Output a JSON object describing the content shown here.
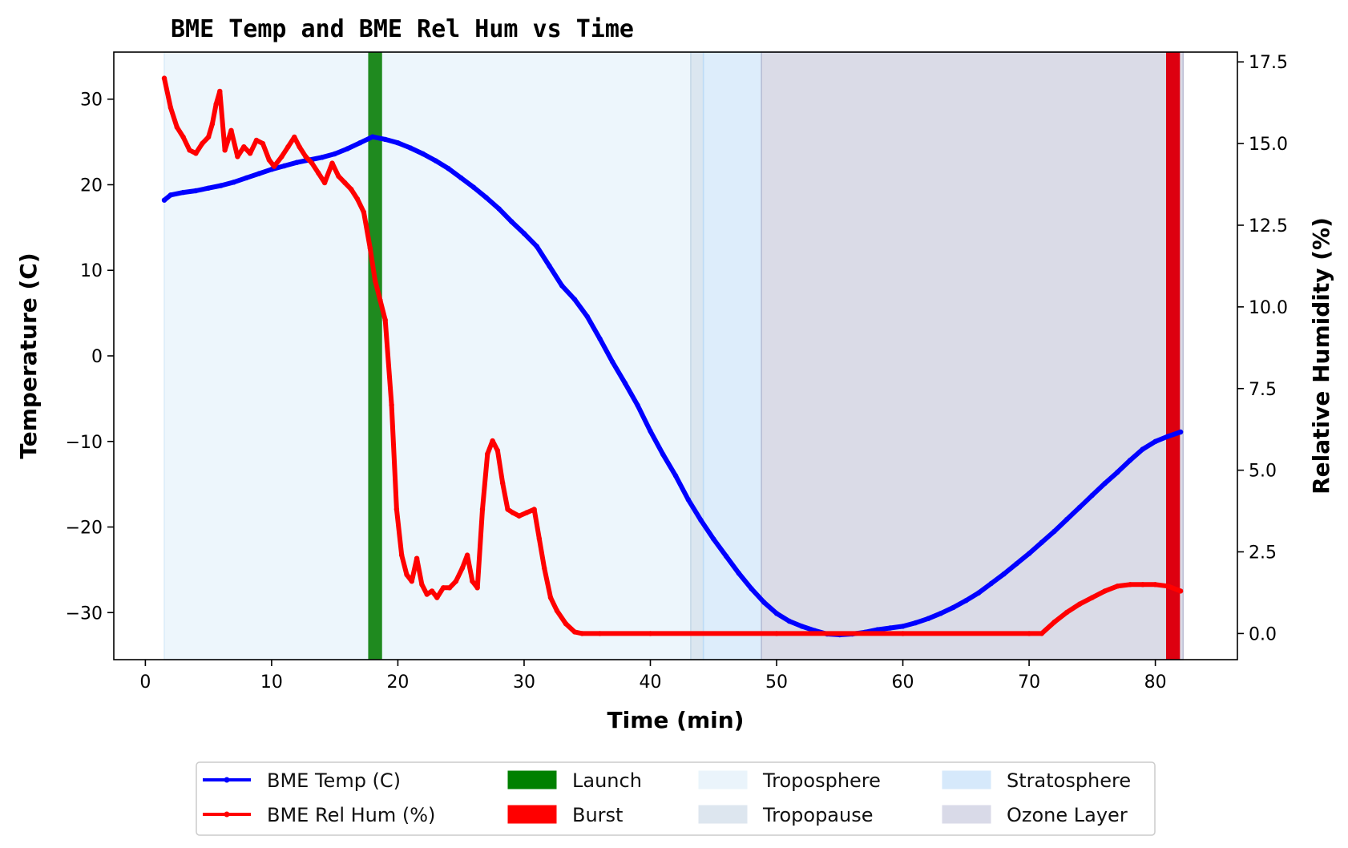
{
  "chart_data": {
    "type": "line",
    "title": "BME Temp and BME Rel Hum vs Time",
    "xlabel": "Time (min)",
    "ylabel_left": "Temperature (C)",
    "ylabel_right": "Relative Humidity (%)",
    "xlim": [
      -2.5,
      86.5
    ],
    "ylim_left": [
      -35.5,
      35.5
    ],
    "ylim_right": [
      -0.8,
      17.8
    ],
    "x_ticks": [
      0,
      10,
      20,
      30,
      40,
      50,
      60,
      70,
      80
    ],
    "x_tick_labels": [
      "0",
      "10",
      "20",
      "30",
      "40",
      "50",
      "60",
      "70",
      "80"
    ],
    "y_left_ticks": [
      30,
      20,
      10,
      0,
      -10,
      -20,
      -30
    ],
    "y_left_tick_labels": [
      "30",
      "20",
      "10",
      "0",
      "−10",
      "−20",
      "−30"
    ],
    "y_right_ticks": [
      0,
      2.5,
      5,
      7.5,
      10,
      12.5,
      15,
      17.5
    ],
    "y_right_tick_labels": [
      "0.0",
      "2.5",
      "5.0",
      "7.5",
      "10.0",
      "12.5",
      "15.0",
      "17.5"
    ],
    "grid": false,
    "legend_position": "below",
    "regions": [
      {
        "name": "Troposphere",
        "x0": 1.5,
        "x1": 43.2,
        "color": "#d6eaf8",
        "opacity": 0.45
      },
      {
        "name": "Tropopause",
        "x0": 43.2,
        "x1": 44.2,
        "color": "#c3d6e6",
        "opacity": 0.6
      },
      {
        "name": "Stratosphere",
        "x0": 44.2,
        "x1": 48.8,
        "color": "#bcdcf7",
        "opacity": 0.5
      },
      {
        "name": "Ozone Layer",
        "x0": 48.8,
        "x1": 82.2,
        "color": "#b6b8d0",
        "opacity": 0.5
      }
    ],
    "events": [
      {
        "name": "Launch",
        "x": 18.2,
        "width": 1.1,
        "color": "#1f8a1f"
      },
      {
        "name": "Burst",
        "x": 81.4,
        "width": 1.1,
        "color": "#dd0010"
      }
    ],
    "series": [
      {
        "name": "BME Temp (C)",
        "axis": "left",
        "color": "#0000ff",
        "x": [
          1.5,
          2,
          3,
          4,
          5,
          6,
          7,
          8,
          9,
          10,
          11,
          12,
          13,
          14,
          15,
          16,
          17,
          18,
          19,
          20,
          21,
          22,
          23,
          24,
          25,
          26,
          27,
          28,
          29,
          30,
          31,
          32,
          33,
          34,
          35,
          36,
          37,
          38,
          39,
          40,
          41,
          42,
          43,
          44,
          45,
          46,
          47,
          48,
          49,
          50,
          51,
          52,
          53,
          54,
          55,
          56,
          57,
          58,
          59,
          60,
          61,
          62,
          63,
          64,
          65,
          66,
          67,
          68,
          69,
          70,
          71,
          72,
          73,
          74,
          75,
          76,
          77,
          78,
          79,
          80,
          81,
          82
        ],
        "y": [
          18.2,
          18.8,
          19.1,
          19.3,
          19.6,
          19.9,
          20.3,
          20.8,
          21.3,
          21.8,
          22.2,
          22.6,
          22.9,
          23.2,
          23.6,
          24.2,
          24.9,
          25.6,
          25.3,
          24.9,
          24.3,
          23.6,
          22.8,
          21.9,
          20.8,
          19.7,
          18.5,
          17.2,
          15.7,
          14.3,
          12.8,
          10.5,
          8.2,
          6.6,
          4.6,
          2.0,
          -0.7,
          -3.2,
          -5.8,
          -8.8,
          -11.5,
          -14.0,
          -16.8,
          -19.2,
          -21.4,
          -23.4,
          -25.4,
          -27.2,
          -28.8,
          -30.1,
          -31.0,
          -31.6,
          -32.1,
          -32.5,
          -32.6,
          -32.5,
          -32.3,
          -32.0,
          -31.8,
          -31.6,
          -31.2,
          -30.7,
          -30.1,
          -29.4,
          -28.6,
          -27.7,
          -26.6,
          -25.5,
          -24.3,
          -23.1,
          -21.8,
          -20.5,
          -19.1,
          -17.7,
          -16.3,
          -14.9,
          -13.6,
          -12.2,
          -10.9,
          -10.0,
          -9.4,
          -8.9
        ]
      },
      {
        "name": "BME Rel Hum (%)",
        "axis": "right",
        "color": "#ff0000",
        "x": [
          1.5,
          2,
          2.5,
          3,
          3.5,
          4,
          4.5,
          5,
          5.3,
          5.6,
          5.9,
          6.3,
          6.8,
          7.3,
          7.8,
          8.3,
          8.8,
          9.3,
          9.8,
          10.2,
          10.8,
          11.3,
          11.8,
          12.2,
          12.7,
          13.2,
          13.7,
          14.2,
          14.8,
          15.3,
          15.8,
          16.3,
          16.8,
          17.3,
          17.8,
          18.2,
          18.6,
          19.0,
          19.5,
          19.9,
          20.3,
          20.7,
          21.1,
          21.5,
          21.9,
          22.3,
          22.7,
          23.1,
          23.6,
          24.1,
          24.6,
          25.1,
          25.5,
          25.9,
          26.3,
          26.7,
          27.1,
          27.5,
          27.9,
          28.3,
          28.7,
          29.1,
          29.6,
          30.2,
          30.8,
          31.2,
          31.6,
          32.1,
          32.6,
          33.3,
          34.0,
          34.6,
          36,
          40,
          50,
          60,
          70,
          71,
          72,
          73,
          74,
          75,
          76,
          77,
          78,
          79,
          80,
          81,
          82
        ],
        "y": [
          17.0,
          16.1,
          15.5,
          15.2,
          14.8,
          14.7,
          15.0,
          15.2,
          15.6,
          16.2,
          16.6,
          14.8,
          15.4,
          14.6,
          14.9,
          14.7,
          15.1,
          15.0,
          14.5,
          14.3,
          14.6,
          14.9,
          15.2,
          14.9,
          14.6,
          14.4,
          14.1,
          13.8,
          14.4,
          14.0,
          13.8,
          13.6,
          13.3,
          12.9,
          11.8,
          10.8,
          10.2,
          9.6,
          7.0,
          3.8,
          2.4,
          1.8,
          1.6,
          2.3,
          1.5,
          1.2,
          1.3,
          1.1,
          1.4,
          1.4,
          1.6,
          2.0,
          2.4,
          1.6,
          1.4,
          3.8,
          5.5,
          5.9,
          5.6,
          4.6,
          3.8,
          3.7,
          3.6,
          3.7,
          3.8,
          2.9,
          2.0,
          1.1,
          0.7,
          0.3,
          0.05,
          0.0,
          0.0,
          0.0,
          0.0,
          0.0,
          0.0,
          0.0,
          0.35,
          0.65,
          0.9,
          1.1,
          1.3,
          1.45,
          1.5,
          1.5,
          1.5,
          1.45,
          1.3
        ]
      }
    ],
    "legend": [
      {
        "label": "BME Temp (C)",
        "kind": "line",
        "color": "#0000ff"
      },
      {
        "label": "BME Rel Hum (%)",
        "kind": "line",
        "color": "#ff0000"
      },
      {
        "label": "Launch",
        "kind": "patch",
        "color": "#008000"
      },
      {
        "label": "Burst",
        "kind": "patch",
        "color": "#ff0000"
      },
      {
        "label": "Troposphere",
        "kind": "patch",
        "color": "#eaf4fb"
      },
      {
        "label": "Tropopause",
        "kind": "patch",
        "color": "#dde6ef"
      },
      {
        "label": "Stratosphere",
        "kind": "patch",
        "color": "#d6e9fb"
      },
      {
        "label": "Ozone Layer",
        "kind": "patch",
        "color": "#d9dae8"
      }
    ]
  }
}
